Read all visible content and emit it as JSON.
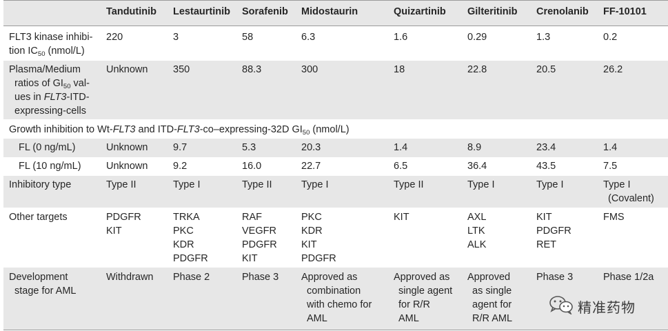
{
  "headers": [
    "Tandutinib",
    "Lestaurtinib",
    "Sorafenib",
    "Midostaurin",
    "Quizartinib",
    "Gilteritinib",
    "Crenolanib",
    "FF-10101"
  ],
  "rows": {
    "ic50": {
      "label_line1": "FLT3 kinase inhibi-",
      "label_line2_pre": "tion IC",
      "label_line2_sub": "50",
      "label_line2_post": " (nmol/L)",
      "values": [
        "220",
        "3",
        "58",
        "6.3",
        "1.6",
        "0.29",
        "1.3",
        "0.2"
      ]
    },
    "plasma": {
      "label_line1": "Plasma/Medium",
      "label_line2_pre": "ratios of GI",
      "label_line2_sub": "50",
      "label_line2_post": " val-",
      "label_line3_pre": "ues in ",
      "label_line3_italic": "FLT3",
      "label_line3_post": "-ITD-",
      "label_line4": "expressing-cells",
      "values": [
        "Unknown",
        "350",
        "88.3",
        "300",
        "18",
        "22.8",
        "20.5",
        "26.2"
      ]
    },
    "growth": {
      "text_a": "Growth inhibition to Wt-",
      "text_b": "FLT3",
      "text_c": " and ITD-",
      "text_d": "FLT3",
      "text_e": "-co–expressing-32D GI",
      "text_sub": "50",
      "text_f": " (nmol/L)"
    },
    "fl0": {
      "label": "FL (0 ng/mL)",
      "values": [
        "Unknown",
        "9.7",
        "5.3",
        "20.3",
        "1.4",
        "8.9",
        "23.4",
        "1.4"
      ]
    },
    "fl10": {
      "label": "FL (10 ng/mL)",
      "values": [
        "Unknown",
        "9.2",
        "16.0",
        "22.7",
        "6.5",
        "36.4",
        "43.5",
        "7.5"
      ]
    },
    "type": {
      "label": "Inhibitory type",
      "values": [
        "Type II",
        "Type I",
        "Type II",
        "Type I",
        "Type II",
        "Type I",
        "Type I",
        "Type I"
      ],
      "ff_line2": "(Covalent)"
    },
    "targets": {
      "label": "Other targets",
      "values": [
        [
          "PDGFR",
          "KIT"
        ],
        [
          "TRKA",
          "PKC",
          "KDR",
          "PDGFR"
        ],
        [
          "RAF",
          "VEGFR",
          "PDGFR",
          "KIT"
        ],
        [
          "PKC",
          "KDR",
          "KIT",
          "PDGFR"
        ],
        [
          "KIT"
        ],
        [
          "AXL",
          "LTK",
          "ALK"
        ],
        [
          "KIT",
          "PDGFR",
          "RET"
        ],
        [
          "FMS"
        ]
      ]
    },
    "stage": {
      "label_line1": "Development",
      "label_line2": "stage for AML",
      "values": [
        [
          "Withdrawn"
        ],
        [
          "Phase 2"
        ],
        [
          "Phase 3"
        ],
        [
          "Approved as",
          "combination",
          "with chemo for",
          "AML"
        ],
        [
          "Approved as",
          "single agent",
          "for R/R",
          "AML"
        ],
        [
          "Approved",
          "as single",
          "agent for",
          "R/R AML"
        ],
        [
          "Phase 3"
        ],
        [
          "Phase 1/2a"
        ]
      ]
    }
  },
  "watermark": {
    "icon": "wechat-icon",
    "text": "精准药物"
  },
  "colors": {
    "shade": "#e7e7e7",
    "rule": "#9a9a9a",
    "text": "#262626"
  }
}
